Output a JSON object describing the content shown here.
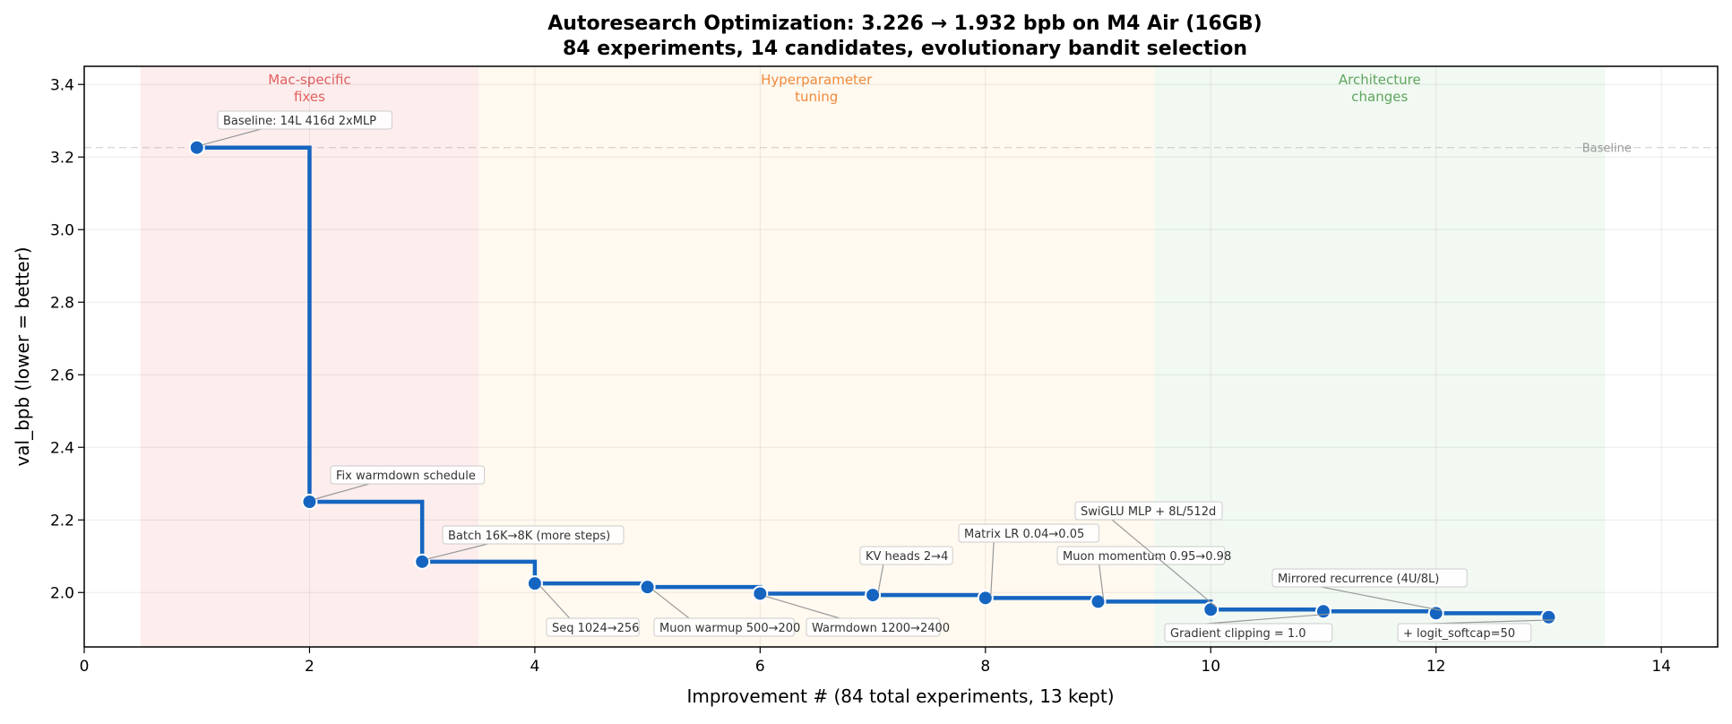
{
  "chart_data": {
    "type": "line",
    "title": "Autoresearch Optimization: 3.226 → 1.932 bpb on M4 Air (16GB)",
    "subtitle": "84 experiments, 14 candidates, evolutionary bandit selection",
    "xlabel": "Improvement # (84 total experiments, 13 kept)",
    "ylabel": "val_bpb (lower = better)",
    "xlim": [
      0,
      14.5
    ],
    "ylim": [
      1.85,
      3.45
    ],
    "x_ticks": [
      "0",
      "2",
      "4",
      "6",
      "8",
      "10",
      "12",
      "14"
    ],
    "y_ticks": [
      "2.0",
      "2.2",
      "2.4",
      "2.6",
      "2.8",
      "3.0",
      "3.2",
      "3.4"
    ],
    "grid": true,
    "step": true,
    "line_color": "#1565c0",
    "x": [
      1,
      2,
      3,
      4,
      5,
      6,
      7,
      8,
      9,
      10,
      11,
      12,
      13
    ],
    "values": [
      3.226,
      2.25,
      2.085,
      2.025,
      2.015,
      1.997,
      1.993,
      1.985,
      1.975,
      1.953,
      1.948,
      1.943,
      1.932
    ],
    "annotations": [
      "Baseline: 14L 416d 2xMLP",
      "Fix warmdown schedule",
      "Batch 16K→8K (more steps)",
      "Seq 1024→256",
      "Muon warmup 500→200",
      "Warmdown 1200→2400",
      "KV heads 2→4",
      "Matrix LR 0.04→0.05",
      "Muon momentum 0.95→0.98",
      "SwiGLU MLP + 8L/512d",
      "Gradient clipping = 1.0",
      "Mirrored recurrence (4U/8L)",
      "+ logit_softcap=50"
    ],
    "regions": [
      {
        "label": [
          "Mac-specific",
          "fixes"
        ],
        "range": [
          0.5,
          3.5
        ],
        "color": "#e53935",
        "text_color": "#e06060"
      },
      {
        "label": [
          "Hyperparameter",
          "tuning"
        ],
        "range": [
          3.5,
          9.5
        ],
        "color": "#ffb74d",
        "text_color": "#f08a3c"
      },
      {
        "label": [
          "Architecture",
          "changes"
        ],
        "range": [
          9.5,
          13.5
        ],
        "color": "#66bb6a",
        "text_color": "#5fa55f"
      }
    ],
    "baseline": {
      "label": "Baseline",
      "value": 3.226
    }
  }
}
